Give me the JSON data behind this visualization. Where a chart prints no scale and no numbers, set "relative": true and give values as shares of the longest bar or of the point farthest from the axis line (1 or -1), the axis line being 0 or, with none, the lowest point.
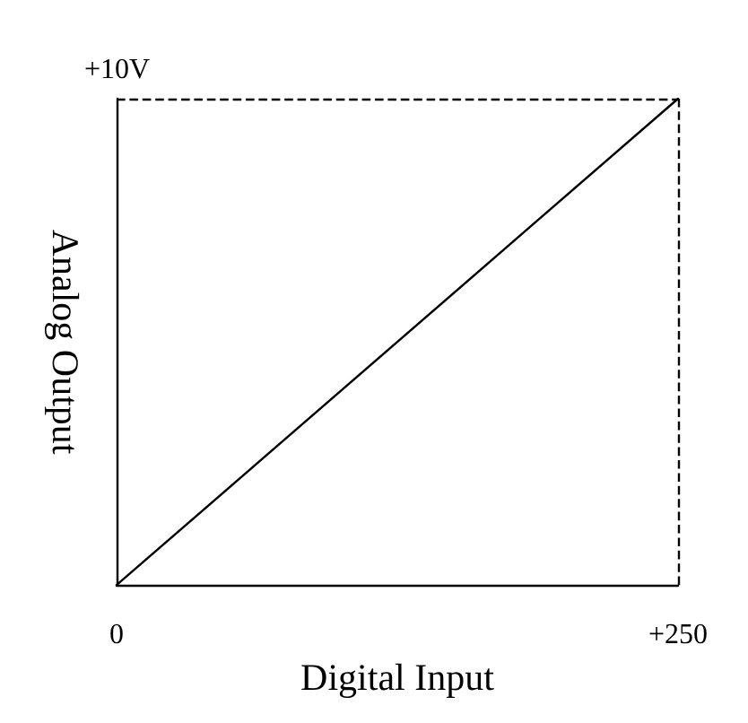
{
  "chart_data": {
    "type": "line",
    "xlabel": "Digital Input",
    "ylabel": "Analog Output",
    "relative": true,
    "x": [
      0,
      250
    ],
    "series": [
      {
        "color": "#000000",
        "values": [
          0,
          1
        ]
      }
    ],
    "xlim": [
      0,
      250
    ],
    "xticks": [
      {
        "value": 0,
        "label": "0"
      },
      {
        "value": 250,
        "label": "+250"
      }
    ],
    "annotations": [
      "+10V"
    ],
    "ref_lines": [
      {
        "axis": "x",
        "value": 250,
        "color": "#000000",
        "line_style": "dashed"
      },
      {
        "axis": "y",
        "value": 1,
        "color": "#000000",
        "line_style": "dashed"
      }
    ],
    "grid": false,
    "marker": "none",
    "line_style": "solid"
  }
}
